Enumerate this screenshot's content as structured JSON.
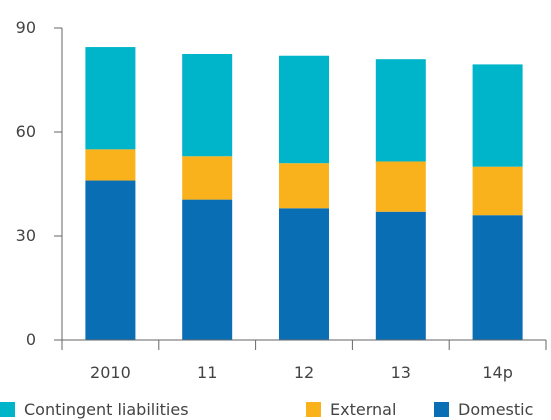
{
  "chart_data": {
    "type": "bar",
    "stacked": true,
    "categories": [
      "2010",
      "11",
      "12",
      "13",
      "14p"
    ],
    "series": [
      {
        "name": "Domestic",
        "color": "#0a6eb4",
        "values": [
          46,
          40.5,
          38,
          37,
          36
        ]
      },
      {
        "name": "External",
        "color": "#f9b21b",
        "values": [
          9,
          12.5,
          13,
          14.5,
          14
        ]
      },
      {
        "name": "Contingent liabilities",
        "color": "#00b4c9",
        "values": [
          29.5,
          29.5,
          31,
          29.5,
          29.5
        ]
      }
    ],
    "yticks": [
      "0",
      "30",
      "60",
      "90"
    ],
    "ylim": [
      0,
      90
    ],
    "grid": false,
    "legend_position": "bottom"
  }
}
